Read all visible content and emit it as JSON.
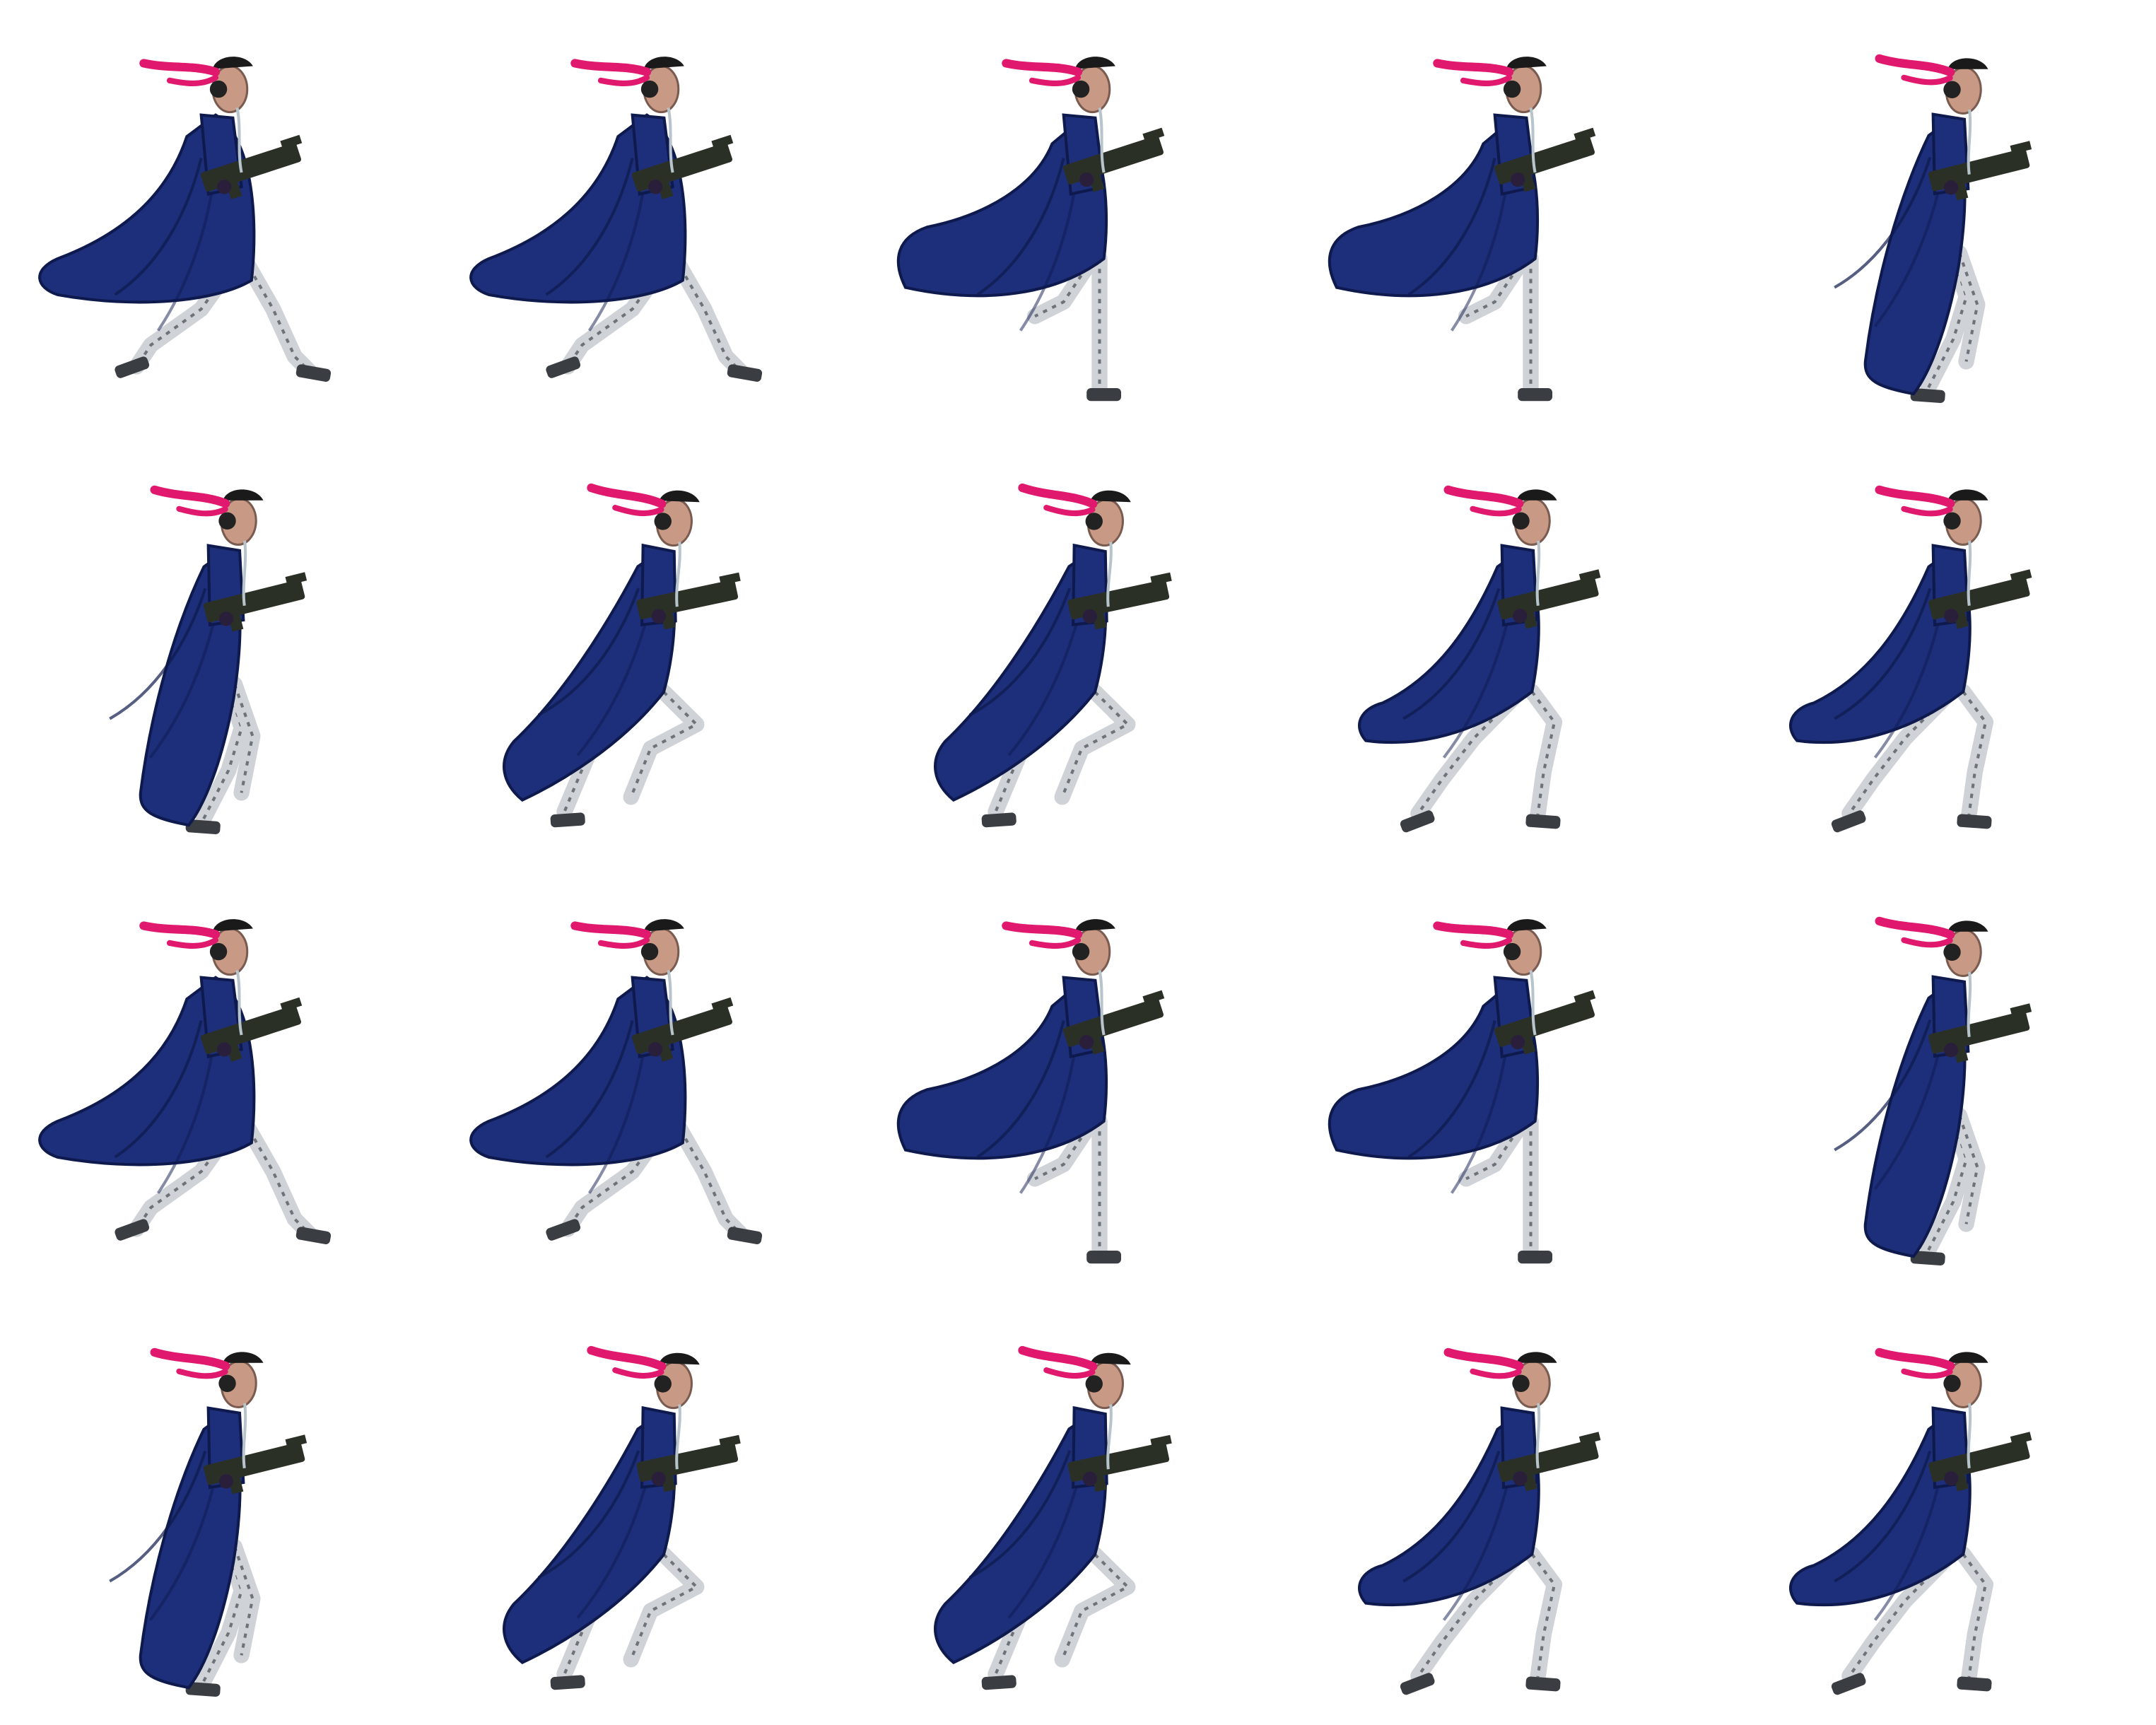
{
  "sheet": {
    "background": "#ffffff",
    "columns": 5,
    "rows": 4,
    "frame_count": 20
  },
  "character": {
    "coat_color": "#1d2f7a",
    "coat_shadow": "#0e1a4d",
    "hair_color": "#e0196e",
    "hat_color": "#1a1a1a",
    "skin_color": "#c89a86",
    "leg_color": "#cfd2d6",
    "leg_shadow": "#6e737a",
    "gun_color": "#2b3027",
    "boot_color": "#3a3d42"
  },
  "frames": [
    {
      "row": 0,
      "col": 0,
      "pose": "run-stride-wide"
    },
    {
      "row": 0,
      "col": 1,
      "pose": "run-stride-wide"
    },
    {
      "row": 0,
      "col": 2,
      "pose": "run-passing-coat-flare"
    },
    {
      "row": 0,
      "col": 3,
      "pose": "run-passing-coat-flare"
    },
    {
      "row": 0,
      "col": 4,
      "pose": "run-contact-coat-down"
    },
    {
      "row": 1,
      "col": 0,
      "pose": "run-contact-coat-down"
    },
    {
      "row": 1,
      "col": 1,
      "pose": "run-knee-up"
    },
    {
      "row": 1,
      "col": 2,
      "pose": "run-knee-up"
    },
    {
      "row": 1,
      "col": 3,
      "pose": "run-push-off"
    },
    {
      "row": 1,
      "col": 4,
      "pose": "run-push-off"
    },
    {
      "row": 2,
      "col": 0,
      "pose": "run-stride-wide"
    },
    {
      "row": 2,
      "col": 1,
      "pose": "run-stride-wide"
    },
    {
      "row": 2,
      "col": 2,
      "pose": "run-passing-coat-flare"
    },
    {
      "row": 2,
      "col": 3,
      "pose": "run-passing-coat-flare"
    },
    {
      "row": 2,
      "col": 4,
      "pose": "run-contact-coat-down"
    },
    {
      "row": 3,
      "col": 0,
      "pose": "run-contact-coat-down"
    },
    {
      "row": 3,
      "col": 1,
      "pose": "run-knee-up"
    },
    {
      "row": 3,
      "col": 2,
      "pose": "run-knee-up"
    },
    {
      "row": 3,
      "col": 3,
      "pose": "run-push-off"
    },
    {
      "row": 3,
      "col": 4,
      "pose": "run-push-off"
    }
  ]
}
